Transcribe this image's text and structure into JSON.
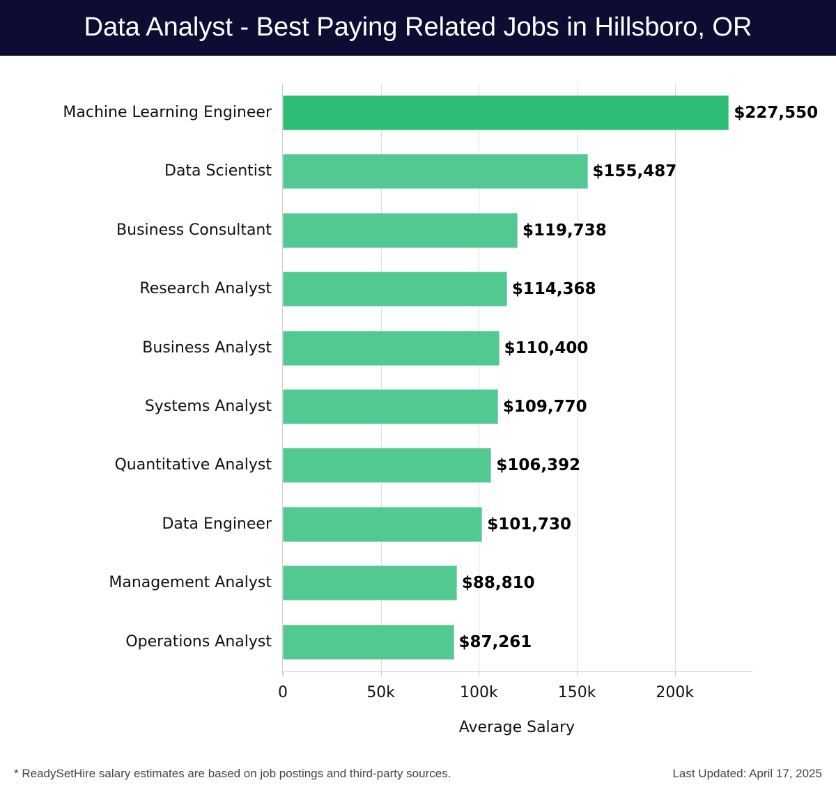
{
  "header": {
    "title": "Data Analyst - Best Paying Related Jobs in Hillsboro, OR"
  },
  "colors": {
    "header_bg": "#0d0c33",
    "top_bar": "#2dbd77",
    "bar": "#52c991"
  },
  "footer": {
    "note": "* ReadySetHire salary estimates are based on job postings and third-party sources.",
    "last_updated": "Last Updated: April 17, 2025"
  },
  "chart_data": {
    "type": "bar",
    "orientation": "horizontal",
    "title": "Data Analyst - Best Paying Related Jobs in Hillsboro, OR",
    "xlabel": "Average Salary",
    "ylabel": "",
    "xlim": [
      0,
      240000
    ],
    "grid": true,
    "x_ticks": [
      "0",
      "50k",
      "100k",
      "150k",
      "200k"
    ],
    "x_tick_values": [
      0,
      50000,
      100000,
      150000,
      200000
    ],
    "categories": [
      "Machine Learning Engineer",
      "Data Scientist",
      "Business Consultant",
      "Research Analyst",
      "Business Analyst",
      "Systems Analyst",
      "Quantitative Analyst",
      "Data Engineer",
      "Management Analyst",
      "Operations Analyst"
    ],
    "values": [
      227550,
      155487,
      119738,
      114368,
      110400,
      109770,
      106392,
      101730,
      88810,
      87261
    ],
    "value_labels": [
      "$227,550",
      "$155,487",
      "$119,738",
      "$114,368",
      "$110,400",
      "$109,770",
      "$106,392",
      "$101,730",
      "$88,810",
      "$87,261"
    ]
  }
}
